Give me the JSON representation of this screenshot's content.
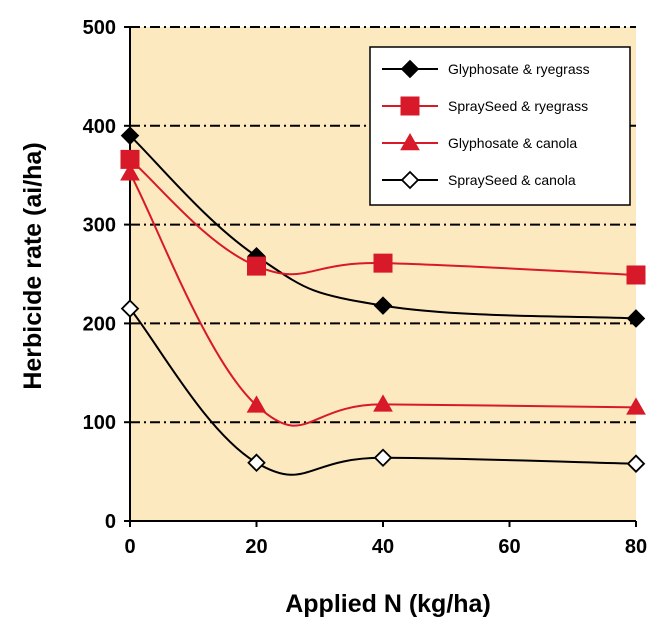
{
  "chart_data": {
    "type": "line",
    "title": "",
    "xlabel": "Applied N (kg/ha)",
    "ylabel": "Herbicide rate (ai/ha)",
    "xlim": [
      0,
      80
    ],
    "ylim": [
      0,
      500
    ],
    "x_ticks": [
      0,
      20,
      40,
      60,
      80
    ],
    "y_ticks": [
      0,
      100,
      200,
      300,
      400,
      500
    ],
    "x": [
      0,
      20,
      40,
      80
    ],
    "grid": "horizontal dash-dot",
    "legend_position": "top-right",
    "colors": {
      "plot_background": "#fde9bf",
      "black": "#000000",
      "red": "#d7192a"
    },
    "series": [
      {
        "name": "Glyphosate & ryegrass",
        "values": [
          390,
          268,
          218,
          205
        ],
        "color": "#000000",
        "marker": "diamond-filled"
      },
      {
        "name": "SpraySeed & ryegrass",
        "values": [
          366,
          258,
          261,
          249
        ],
        "color": "#d7192a",
        "marker": "square-filled"
      },
      {
        "name": "Glyphosate & canola",
        "values": [
          352,
          117,
          118,
          115
        ],
        "color": "#d7192a",
        "marker": "triangle-filled"
      },
      {
        "name": "SpraySeed & canola",
        "values": [
          215,
          59,
          64,
          58
        ],
        "color": "#000000",
        "marker": "diamond-open"
      }
    ]
  }
}
